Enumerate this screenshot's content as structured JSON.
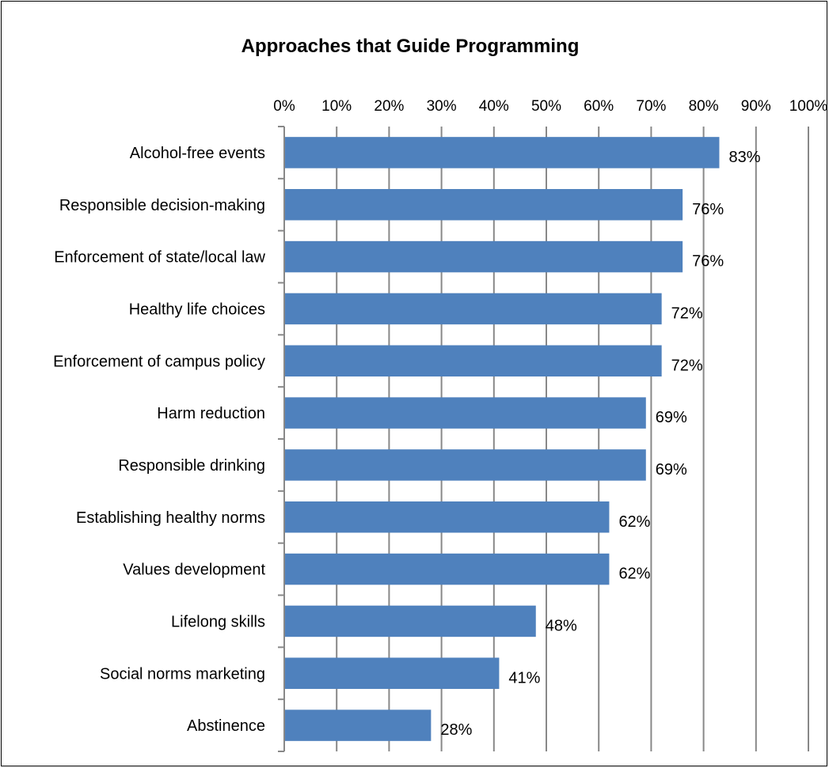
{
  "chart_data": {
    "type": "bar",
    "orientation": "horizontal",
    "title": "Approaches that Guide Programming",
    "categories": [
      "Alcohol-free events",
      "Responsible decision-making",
      "Enforcement of state/local law",
      "Healthy life choices",
      "Enforcement of campus policy",
      "Harm reduction",
      "Responsible drinking",
      "Establishing healthy norms",
      "Values development",
      "Lifelong skills",
      "Social norms marketing",
      "Abstinence"
    ],
    "values": [
      83,
      76,
      76,
      72,
      72,
      69,
      69,
      62,
      62,
      48,
      41,
      28
    ],
    "data_labels": [
      "83%",
      "76%",
      "76%",
      "72%",
      "72%",
      "69%",
      "69%",
      "62%",
      "62%",
      "48%",
      "41%",
      "28%"
    ],
    "xlim": [
      0,
      100
    ],
    "x_ticks": [
      "0%",
      "10%",
      "20%",
      "30%",
      "40%",
      "50%",
      "60%",
      "70%",
      "80%",
      "90%",
      "100%"
    ],
    "x_axis_position": "top",
    "grid": "vertical",
    "bar_color": "#4F81BD",
    "gridline_color": "#888888"
  }
}
